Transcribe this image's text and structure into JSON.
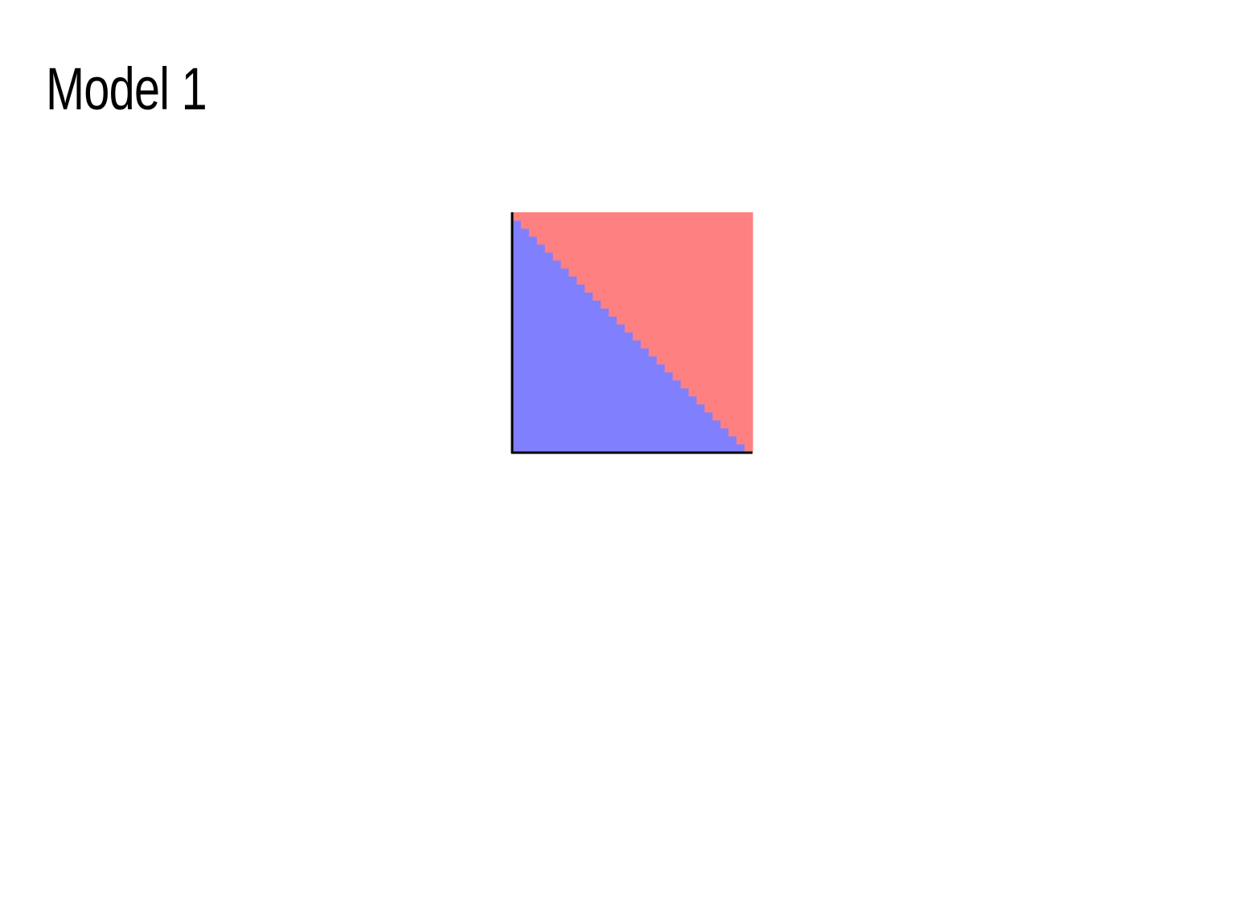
{
  "page": {
    "title": "Model 1"
  },
  "chart_data": {
    "type": "heatmap",
    "description_free": true,
    "x_range": [
      0,
      1
    ],
    "y_range": [
      0,
      1
    ],
    "grid": false,
    "axes_visible": [
      "left",
      "bottom"
    ],
    "tick_labels": false,
    "classes": [
      {
        "id": 0,
        "color": "#8080ff"
      },
      {
        "id": 1,
        "color": "#ff8080"
      }
    ],
    "resolution": 30,
    "decision_boundary": {
      "form": "linear",
      "x_plus_y_equals": 1.0,
      "below_class": 0,
      "above_class": 1
    }
  }
}
